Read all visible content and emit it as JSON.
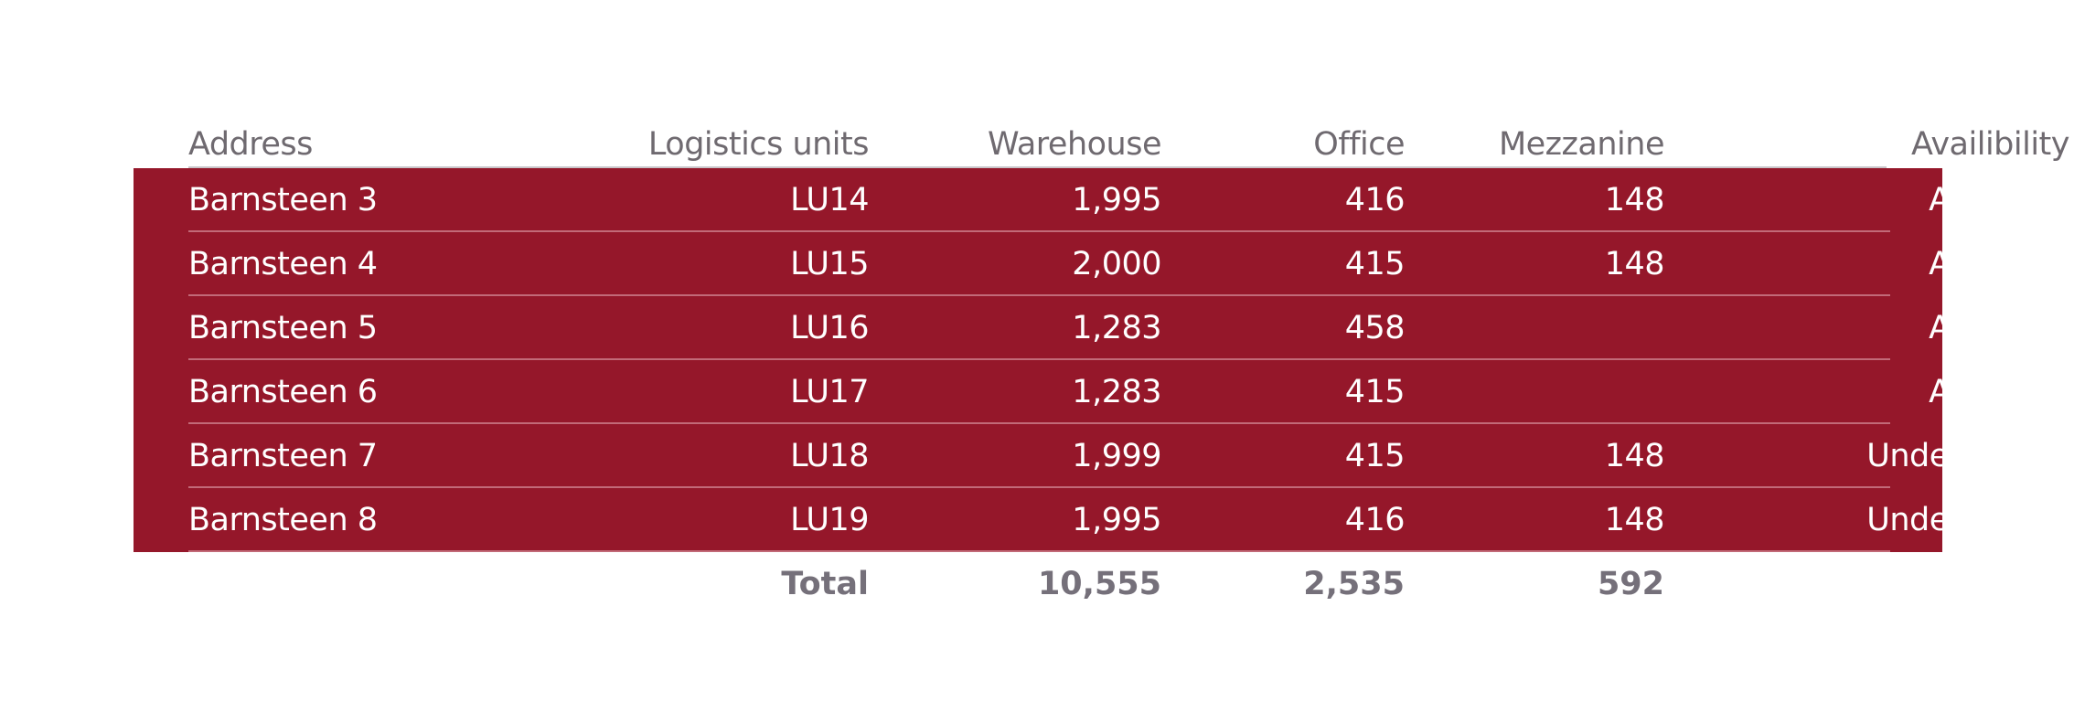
{
  "table": {
    "headers": {
      "address": "Address",
      "logistics_units": "Logistics units",
      "warehouse": "Warehouse",
      "office": "Office",
      "mezzanine": "Mezzanine",
      "availability": "Availibility"
    },
    "rows": [
      {
        "address": "Barnsteen 3",
        "logistics_units": "LU14",
        "warehouse": "1,995",
        "office": "416",
        "mezzanine": "148",
        "availability": "Available"
      },
      {
        "address": "Barnsteen 4",
        "logistics_units": "LU15",
        "warehouse": "2,000",
        "office": "415",
        "mezzanine": "148",
        "availability": "Available"
      },
      {
        "address": "Barnsteen 5",
        "logistics_units": "LU16",
        "warehouse": "1,283",
        "office": "458",
        "mezzanine": "",
        "availability": "Available"
      },
      {
        "address": "Barnsteen 6",
        "logistics_units": "LU17",
        "warehouse": "1,283",
        "office": "415",
        "mezzanine": "",
        "availability": "Available"
      },
      {
        "address": "Barnsteen 7",
        "logistics_units": "LU18",
        "warehouse": "1,999",
        "office": "415",
        "mezzanine": "148",
        "availability": "Under option"
      },
      {
        "address": "Barnsteen 8",
        "logistics_units": "LU19",
        "warehouse": "1,995",
        "office": "416",
        "mezzanine": "148",
        "availability": "Under option"
      }
    ],
    "total": {
      "label": "Total",
      "warehouse": "10,555",
      "office": "2,535",
      "mezzanine": "592"
    }
  },
  "colors": {
    "band": "#95172a",
    "header_text": "#6f6a70",
    "total_text": "#75707a",
    "row_text": "#ffffff"
  }
}
